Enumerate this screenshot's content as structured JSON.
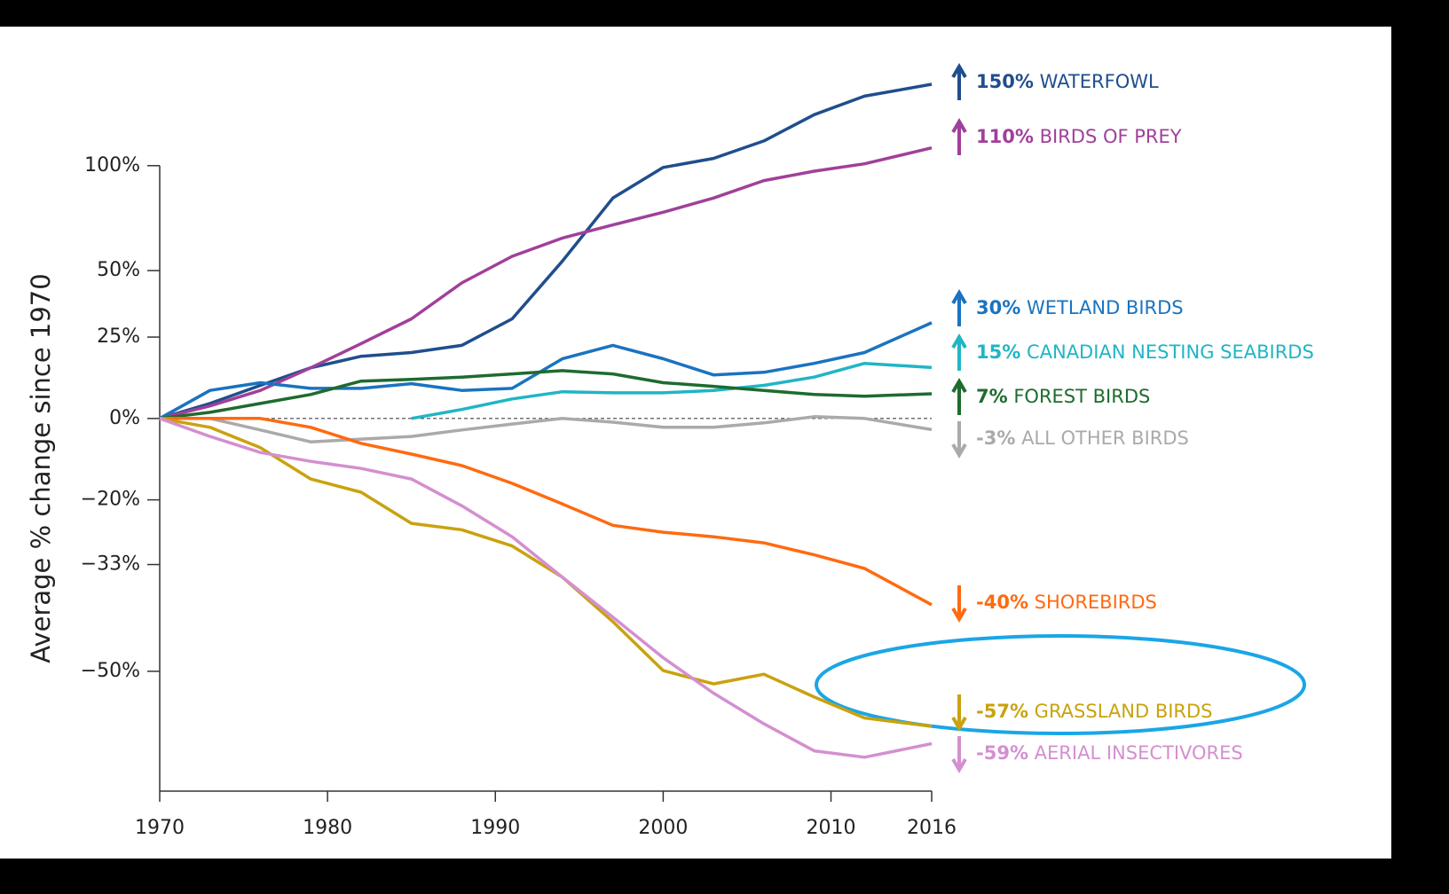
{
  "chart_data": {
    "type": "line",
    "y_axis_label": "Average % change since 1970",
    "log_scale": true,
    "x": [
      1970,
      1973,
      1976,
      1979,
      1982,
      1985,
      1988,
      1991,
      1994,
      1997,
      2000,
      2003,
      2006,
      2009,
      2012,
      2016
    ],
    "xlim": [
      1970,
      2016
    ],
    "xticks": [
      1970,
      1980,
      1990,
      2000,
      2010,
      2016
    ],
    "ylim": [
      -64,
      150
    ],
    "yticks": [
      {
        "value": 100,
        "label": "100%"
      },
      {
        "value": 50,
        "label": "50%"
      },
      {
        "value": 25,
        "label": "25%"
      },
      {
        "value": 0,
        "label": "0%"
      },
      {
        "value": -20,
        "label": "−20%"
      },
      {
        "value": -33,
        "label": "−33%"
      },
      {
        "value": -50,
        "label": "−50%"
      }
    ],
    "zero_line": true,
    "series": [
      {
        "name": "WATERFOWL",
        "pct_label": "150%",
        "color": "#1f4e8c",
        "values": [
          0,
          4.2,
          9.5,
          14.9,
          18.6,
          19.8,
          22.2,
          31.4,
          54,
          83,
          99,
          104,
          114,
          130,
          142,
          150
        ]
      },
      {
        "name": "BIRDS OF PREY",
        "pct_label": "110%",
        "color": "#a0409a",
        "values": [
          0,
          3.5,
          8,
          14.9,
          22.8,
          31.4,
          45,
          56,
          64,
          70,
          76,
          83,
          92,
          97,
          101,
          110
        ]
      },
      {
        "name": "WETLAND BIRDS",
        "pct_label": "30%",
        "color": "#1a73c0",
        "values": [
          0,
          8,
          10.3,
          8.6,
          8.6,
          10,
          8,
          8.6,
          17.8,
          22.2,
          17.8,
          12.7,
          13.5,
          16.3,
          19.8,
          30
        ]
      },
      {
        "name": "CANADIAN NESTING SEABIRDS",
        "pct_label": "15%",
        "color": "#20b5c5",
        "values": [
          null,
          null,
          null,
          null,
          null,
          0,
          2.5,
          5.5,
          7.6,
          7.3,
          7.3,
          8,
          9.5,
          12,
          16.3,
          15
        ]
      },
      {
        "name": "FOREST BIRDS",
        "pct_label": "7%",
        "color": "#1e6b2e",
        "values": [
          0,
          1.7,
          4.2,
          6.8,
          10.8,
          11.3,
          12,
          13,
          14,
          13,
          10.3,
          9.2,
          8,
          6.8,
          6.3,
          7
        ]
      },
      {
        "name": "ALL OTHER BIRDS",
        "pct_label": "-3%",
        "color": "#aaaaaa",
        "values": [
          0,
          0,
          -3.1,
          -6.2,
          -5.5,
          -4.8,
          -3.1,
          -1.5,
          0,
          -1,
          -2.4,
          -2.4,
          -1.2,
          0.5,
          0,
          -3
        ]
      },
      {
        "name": "SHOREBIRDS",
        "pct_label": "-40%",
        "color": "#ff6a10",
        "values": [
          0,
          0,
          0,
          -2.4,
          -6.6,
          -9.3,
          -12.1,
          -16.3,
          -20.9,
          -25.4,
          -26.8,
          -27.7,
          -28.9,
          -31.2,
          -33.7,
          -40
        ]
      },
      {
        "name": "GRASSLAND BIRDS",
        "pct_label": "-57%",
        "color": "#c9a20f",
        "values": [
          0,
          -2.4,
          -7.7,
          -15.3,
          -18.3,
          -25,
          -26.3,
          -29.5,
          -35.3,
          -42.7,
          -49.9,
          -51.7,
          -50.4,
          -53.4,
          -56,
          -57
        ]
      },
      {
        "name": "AERIAL INSECTIVORES",
        "pct_label": "-59%",
        "color": "#d48fd0",
        "values": [
          0,
          -4.8,
          -8.9,
          -11.1,
          -12.8,
          -15.3,
          -21.3,
          -27.7,
          -35.3,
          -42,
          -48.1,
          -52.9,
          -56.7,
          -59.8,
          -60.5,
          -59
        ]
      }
    ]
  }
}
